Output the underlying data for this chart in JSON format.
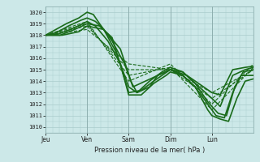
{
  "xlabel": "Pression niveau de la mer( hPa )",
  "bg_color": "#cce8e8",
  "grid_color": "#aacccc",
  "line_color": "#1a6b1a",
  "xlim": [
    0,
    5
  ],
  "ylim": [
    1009.5,
    1020.5
  ],
  "yticks": [
    1010,
    1011,
    1012,
    1013,
    1014,
    1015,
    1016,
    1017,
    1018,
    1019,
    1020
  ],
  "xtick_labels": [
    "Jeu",
    "Ven",
    "Sam",
    "Dim",
    "Lun"
  ],
  "xtick_positions": [
    0.0,
    1.0,
    2.0,
    3.0,
    4.0
  ],
  "series": [
    {
      "x": [
        0.0,
        0.2,
        0.5,
        0.8,
        1.0,
        1.15,
        1.3,
        1.6,
        1.9,
        2.05,
        2.2,
        2.5,
        2.7,
        3.0,
        3.3,
        3.6,
        3.9,
        4.0,
        4.1,
        4.3,
        4.5,
        4.7,
        4.9,
        5.0
      ],
      "y": [
        1018.0,
        1018.4,
        1019.0,
        1019.5,
        1020.0,
        1019.8,
        1019.0,
        1017.5,
        1015.5,
        1014.0,
        1013.0,
        1013.5,
        1014.5,
        1015.0,
        1014.5,
        1013.5,
        1012.0,
        1011.5,
        1011.0,
        1010.8,
        1013.0,
        1014.5,
        1014.5,
        1014.5
      ],
      "style": "solid",
      "lw": 1.2
    },
    {
      "x": [
        0.0,
        0.25,
        0.55,
        0.85,
        1.0,
        1.2,
        1.4,
        1.7,
        2.0,
        2.2,
        2.5,
        2.8,
        3.0,
        3.3,
        3.6,
        3.9,
        4.0,
        4.15,
        4.35,
        4.55,
        4.75,
        5.0
      ],
      "y": [
        1018.0,
        1018.2,
        1018.8,
        1019.3,
        1019.5,
        1019.2,
        1018.5,
        1016.5,
        1013.5,
        1013.0,
        1014.0,
        1014.8,
        1015.2,
        1014.8,
        1013.8,
        1012.2,
        1011.8,
        1011.2,
        1011.0,
        1013.5,
        1014.8,
        1015.0
      ],
      "style": "solid",
      "lw": 1.2
    },
    {
      "x": [
        0.0,
        0.3,
        0.6,
        0.9,
        1.0,
        1.2,
        1.5,
        1.8,
        2.0,
        2.3,
        2.6,
        2.9,
        3.0,
        3.3,
        3.6,
        3.9,
        4.0,
        4.2,
        4.4,
        4.6,
        4.8,
        5.0
      ],
      "y": [
        1018.0,
        1018.1,
        1018.5,
        1019.0,
        1019.2,
        1018.8,
        1017.5,
        1015.5,
        1012.8,
        1012.8,
        1013.8,
        1014.5,
        1014.8,
        1014.5,
        1013.5,
        1011.5,
        1011.0,
        1010.7,
        1010.5,
        1012.5,
        1014.0,
        1014.2
      ],
      "style": "solid",
      "lw": 1.2
    },
    {
      "x": [
        0.0,
        0.35,
        0.7,
        1.0,
        1.3,
        1.6,
        2.0,
        2.3,
        2.6,
        3.0,
        3.3,
        3.6,
        4.0,
        4.2,
        4.5,
        4.8,
        5.0
      ],
      "y": [
        1018.0,
        1018.0,
        1018.5,
        1019.0,
        1018.8,
        1017.8,
        1013.0,
        1013.2,
        1014.0,
        1015.0,
        1014.8,
        1013.8,
        1012.5,
        1011.8,
        1014.5,
        1015.0,
        1015.2
      ],
      "style": "solid",
      "lw": 1.2
    },
    {
      "x": [
        0.0,
        0.4,
        0.8,
        1.0,
        1.4,
        1.8,
        2.1,
        2.4,
        2.7,
        3.0,
        3.4,
        3.8,
        4.0,
        4.2,
        4.5,
        4.8,
        5.0
      ],
      "y": [
        1018.0,
        1018.0,
        1018.3,
        1018.8,
        1018.5,
        1016.8,
        1013.5,
        1014.0,
        1014.5,
        1015.0,
        1014.5,
        1013.5,
        1013.0,
        1012.8,
        1015.0,
        1015.2,
        1015.3
      ],
      "style": "solid",
      "lw": 1.2
    },
    {
      "x": [
        0.0,
        1.0,
        2.0,
        3.0,
        4.0,
        5.0
      ],
      "y": [
        1018.0,
        1019.2,
        1014.0,
        1015.5,
        1012.0,
        1015.5
      ],
      "style": "dashed",
      "lw": 0.8
    },
    {
      "x": [
        0.0,
        1.0,
        2.0,
        3.0,
        4.0,
        5.0
      ],
      "y": [
        1018.0,
        1019.0,
        1014.5,
        1015.2,
        1011.5,
        1015.2
      ],
      "style": "dashed",
      "lw": 0.8
    },
    {
      "x": [
        0.0,
        1.0,
        2.0,
        3.0,
        4.0,
        5.0
      ],
      "y": [
        1018.0,
        1018.8,
        1015.0,
        1015.0,
        1012.5,
        1015.0
      ],
      "style": "dashed",
      "lw": 0.8
    },
    {
      "x": [
        0.0,
        1.0,
        2.0,
        3.0,
        4.0,
        5.0
      ],
      "y": [
        1018.0,
        1018.5,
        1015.5,
        1015.0,
        1013.0,
        1015.0
      ],
      "style": "dashed",
      "lw": 0.8
    }
  ]
}
